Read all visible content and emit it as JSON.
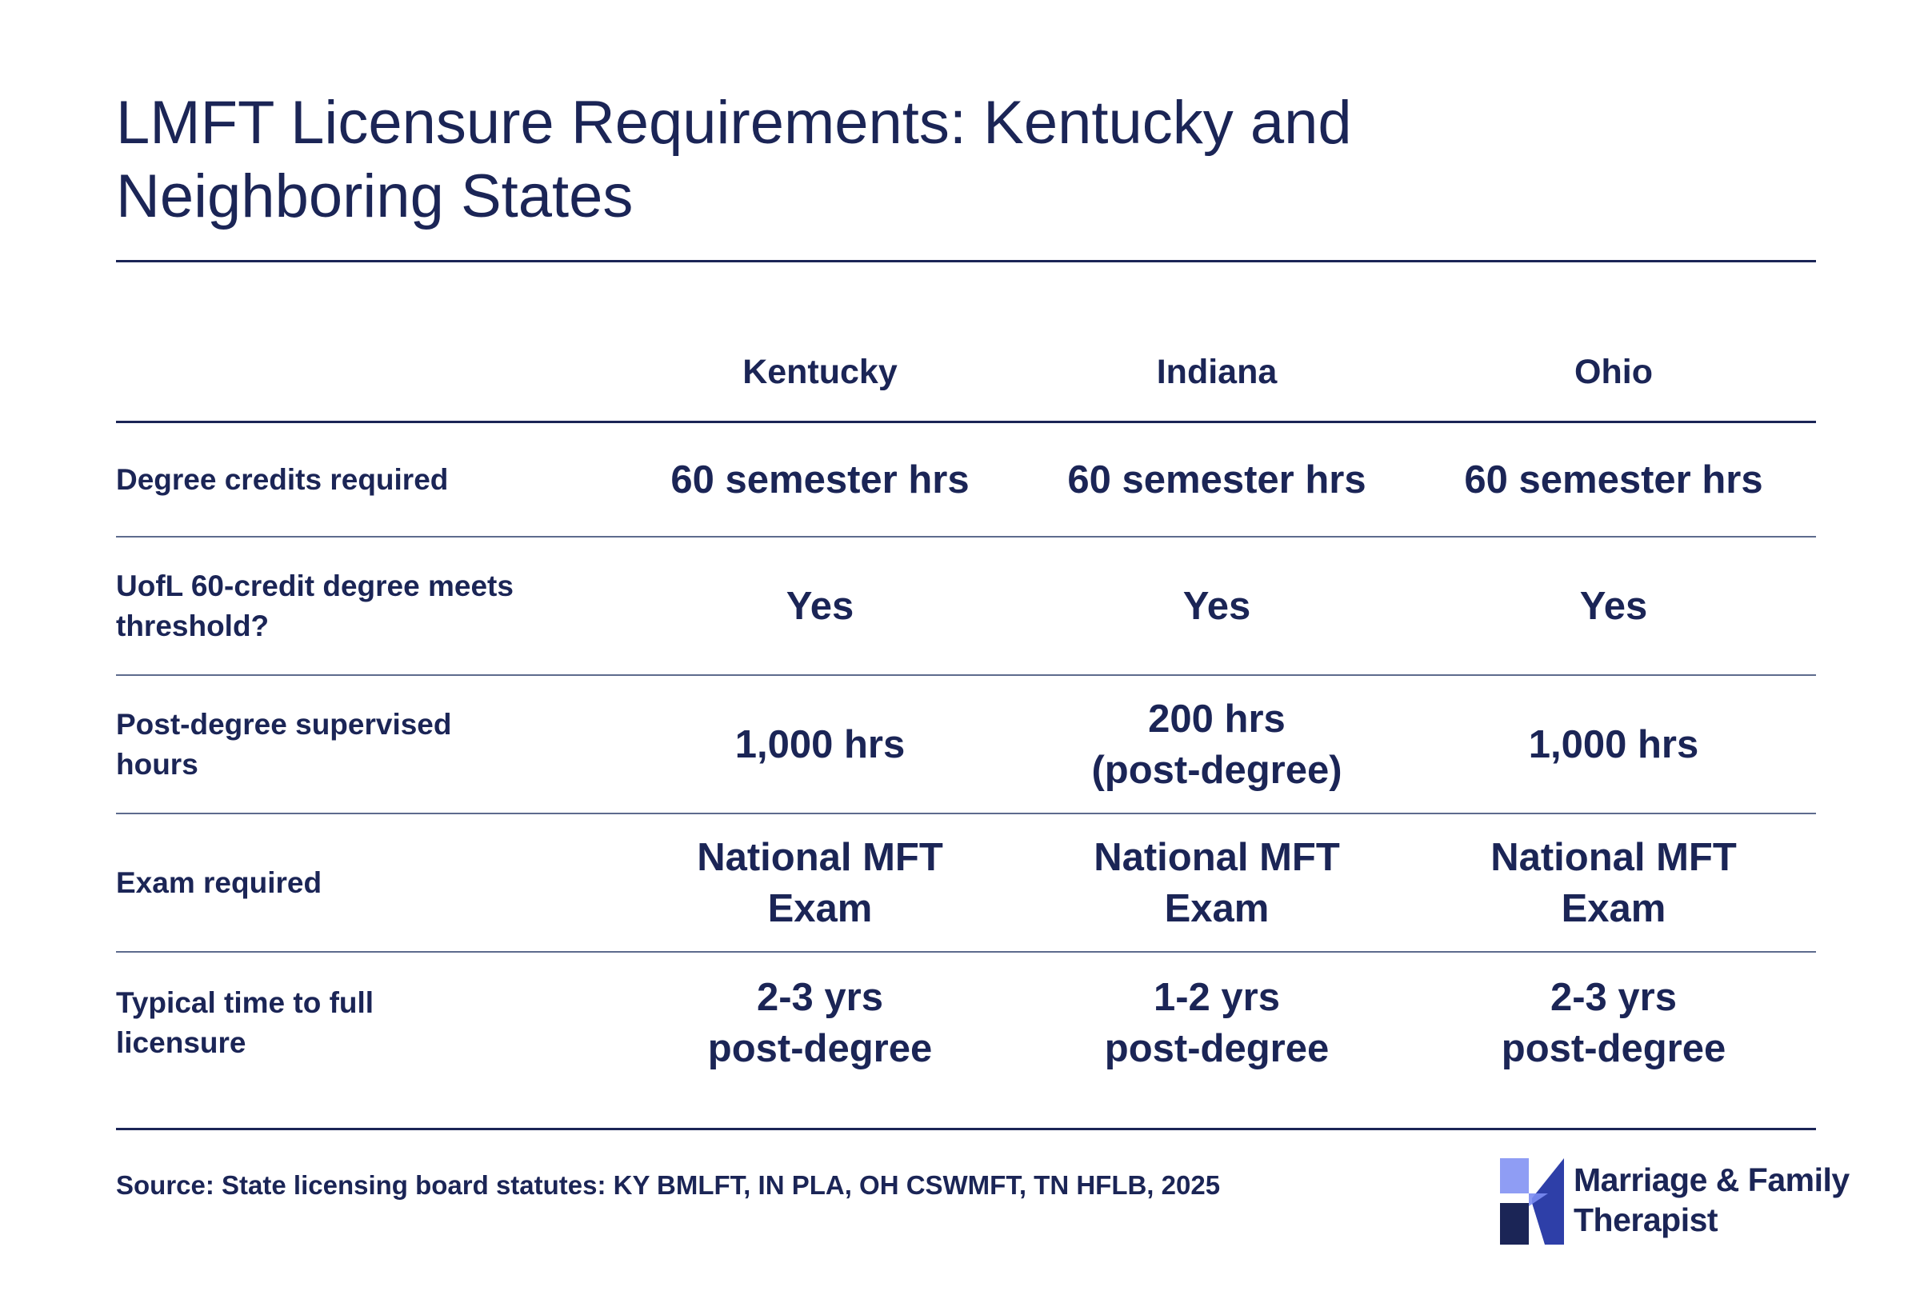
{
  "title": {
    "line1": "LMFT Licensure Requirements: Kentucky and",
    "line2": "Neighboring States"
  },
  "table": {
    "columns": [
      "Kentucky",
      "Indiana",
      "Ohio"
    ],
    "rows": [
      {
        "label": [
          "Degree credits required"
        ],
        "cells": [
          [
            "60 semester hrs"
          ],
          [
            "60 semester hrs"
          ],
          [
            "60 semester hrs"
          ]
        ]
      },
      {
        "label": [
          "UofL 60-credit degree meets",
          "threshold?"
        ],
        "cells": [
          [
            "Yes"
          ],
          [
            "Yes"
          ],
          [
            "Yes"
          ]
        ]
      },
      {
        "label": [
          "Post-degree supervised",
          "hours"
        ],
        "cells": [
          [
            "1,000 hrs"
          ],
          [
            "200 hrs",
            "(post-degree)"
          ],
          [
            "1,000 hrs"
          ]
        ]
      },
      {
        "label": [
          "Exam required"
        ],
        "cells": [
          [
            "National MFT",
            "Exam"
          ],
          [
            "National MFT",
            "Exam"
          ],
          [
            "National MFT",
            "Exam"
          ]
        ]
      },
      {
        "label": [
          "Typical time to full",
          "licensure"
        ],
        "cells": [
          [
            "2-3 yrs",
            "post-degree"
          ],
          [
            "1-2 yrs",
            "post-degree"
          ],
          [
            "2-3 yrs",
            "post-degree"
          ]
        ]
      }
    ]
  },
  "source": "Source: State licensing board statutes: KY BMLFT, IN PLA, OH CSWMFT, TN HFLB, 2025",
  "logo": {
    "line1": "Marriage & Family",
    "line2": "Therapist",
    "icon": "four-petal-logo-icon",
    "colors": {
      "light": "#7b8cf2",
      "mid": "#2e3fa8",
      "dark": "#1b2556"
    }
  },
  "colors": {
    "text": "#1b2556",
    "rule": "#1b2556",
    "row_divider": "#5d6b8d"
  }
}
